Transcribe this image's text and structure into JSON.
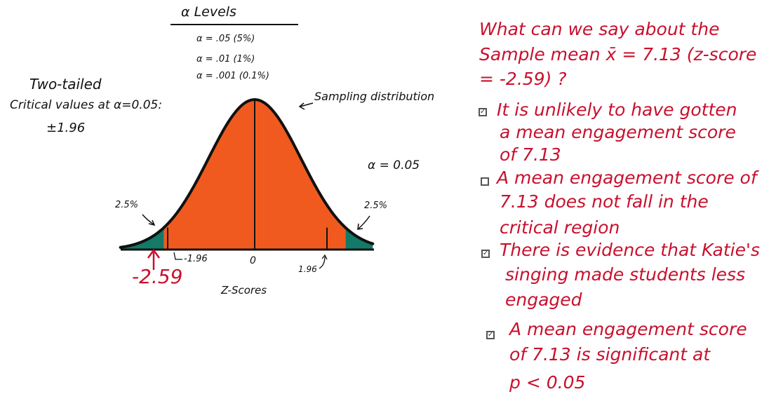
{
  "alpha_levels": {
    "title": "α Levels",
    "items": [
      "α = .05 (5%)",
      "α = .01 (1%)",
      "α = .001 (0.1%)"
    ]
  },
  "two_tailed": {
    "line1": "Two-tailed",
    "line2": "Critical values at α=0.05:",
    "line3": "±1.96"
  },
  "diagram": {
    "distribution_label": "Sampling distribution",
    "alpha_label": "α = 0.05",
    "left_tail_pct": "2.5%",
    "right_tail_pct": "2.5%",
    "tick_labels": [
      "-1.96",
      "0",
      "1.96"
    ],
    "observed_z": "-2.59",
    "xlabel": "Z-Scores",
    "colors": {
      "body": "#f15a1e",
      "tails": "#137a68",
      "observed": "#c8102e",
      "outline": "#111111"
    }
  },
  "question": {
    "line1": "What can we say about the",
    "line2": "Sample mean x̄ = 7.13 (z-score",
    "line3": "= -2.59) ?"
  },
  "options": [
    {
      "checked": true,
      "lines": [
        "It is unlikely to have gotten",
        "a mean engagement score",
        "of 7.13"
      ]
    },
    {
      "checked": false,
      "lines": [
        "A mean engagement score of",
        "7.13 does not fall in the",
        "critical region"
      ]
    },
    {
      "checked": true,
      "lines": [
        "There is evidence that Katie's",
        "singing made students less",
        "engaged"
      ]
    },
    {
      "checked": true,
      "lines": [
        "A mean engagement score",
        "of 7.13 is significant at",
        "p < 0.05"
      ]
    }
  ],
  "check_mark": "✓"
}
